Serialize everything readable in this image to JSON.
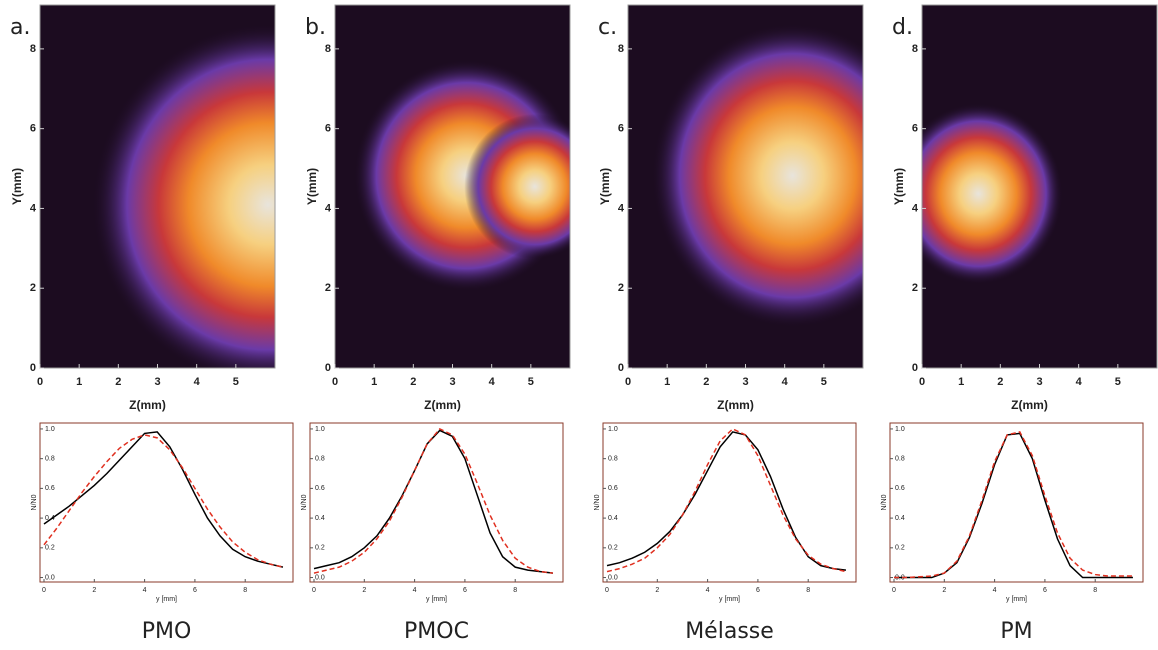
{
  "chart_data": [
    {
      "type": "image",
      "label": "a.",
      "xlabel": "Z(mm)",
      "ylabel": "Y(mm)",
      "xlim": [
        0,
        6
      ],
      "ylim": [
        0,
        9.1
      ],
      "xticks": [
        0,
        1,
        2,
        3,
        4,
        5
      ],
      "yticks": [
        0,
        2,
        4,
        6,
        8
      ]
    },
    {
      "type": "image",
      "label": "b.",
      "xlabel": "Z(mm)",
      "ylabel": "Y(mm)",
      "xlim": [
        0,
        6
      ],
      "ylim": [
        0,
        9.1
      ],
      "xticks": [
        0,
        1,
        2,
        3,
        4,
        5
      ],
      "yticks": [
        0,
        2,
        4,
        6,
        8
      ]
    },
    {
      "type": "image",
      "label": "c.",
      "xlabel": "Z(mm)",
      "ylabel": "Y(mm)",
      "xlim": [
        0,
        6
      ],
      "ylim": [
        0,
        9.1
      ],
      "xticks": [
        0,
        1,
        2,
        3,
        4,
        5
      ],
      "yticks": [
        0,
        2,
        4,
        6,
        8
      ]
    },
    {
      "type": "image",
      "label": "d.",
      "xlabel": "Z(mm)",
      "ylabel": "Y(mm)",
      "xlim": [
        0,
        6
      ],
      "ylim": [
        0,
        9.1
      ],
      "xticks": [
        0,
        1,
        2,
        3,
        4,
        5
      ],
      "yticks": [
        0,
        2,
        4,
        6,
        8
      ]
    },
    {
      "type": "line",
      "caption": "PMO",
      "xlabel": "y [mm]",
      "ylabel": "N/N0",
      "xlim": [
        0,
        9.9
      ],
      "ylim": [
        -0.03,
        1.04
      ],
      "xticks": [
        0,
        2,
        4,
        6,
        8
      ],
      "yticks": [
        {
          "value": 0,
          "label": "0.0"
        },
        0.2,
        0.4,
        0.6,
        0.8,
        {
          "value": 1,
          "label": "1.0"
        }
      ],
      "x": [
        0,
        0.5,
        1,
        1.5,
        2,
        2.5,
        3,
        3.5,
        4,
        4.5,
        5,
        5.5,
        6,
        6.5,
        7,
        7.5,
        8,
        8.5,
        9,
        9.5
      ],
      "series": [
        {
          "color": "#000000",
          "style": "solid",
          "values": [
            0.36,
            0.42,
            0.48,
            0.55,
            0.62,
            0.7,
            0.79,
            0.88,
            0.97,
            0.98,
            0.88,
            0.73,
            0.56,
            0.4,
            0.28,
            0.19,
            0.14,
            0.11,
            0.09,
            0.07
          ]
        },
        {
          "color": "#e03020",
          "style": "dashed",
          "values": [
            0.22,
            0.33,
            0.45,
            0.57,
            0.68,
            0.78,
            0.87,
            0.93,
            0.96,
            0.94,
            0.86,
            0.74,
            0.6,
            0.46,
            0.34,
            0.24,
            0.17,
            0.12,
            0.09,
            0.07
          ]
        }
      ]
    },
    {
      "type": "line",
      "caption": "PMOC",
      "xlabel": "y [mm]",
      "ylabel": "N/N0",
      "xlim": [
        0,
        9.9
      ],
      "ylim": [
        -0.03,
        1.04
      ],
      "xticks": [
        0,
        2,
        4,
        6,
        8
      ],
      "yticks": [
        {
          "value": 0,
          "label": "0.0"
        },
        0.2,
        0.4,
        0.6,
        0.8,
        {
          "value": 1,
          "label": "1.0"
        }
      ],
      "x": [
        0,
        0.5,
        1,
        1.5,
        2,
        2.5,
        3,
        3.5,
        4,
        4.5,
        5,
        5.5,
        6,
        6.5,
        7,
        7.5,
        8,
        8.5,
        9,
        9.5
      ],
      "series": [
        {
          "color": "#000000",
          "style": "solid",
          "values": [
            0.06,
            0.08,
            0.1,
            0.14,
            0.2,
            0.28,
            0.4,
            0.55,
            0.72,
            0.9,
            0.99,
            0.95,
            0.8,
            0.55,
            0.3,
            0.14,
            0.07,
            0.05,
            0.04,
            0.03
          ]
        },
        {
          "color": "#e03020",
          "style": "dashed",
          "values": [
            0.03,
            0.05,
            0.07,
            0.11,
            0.17,
            0.26,
            0.38,
            0.54,
            0.72,
            0.9,
            1.0,
            0.96,
            0.83,
            0.63,
            0.42,
            0.25,
            0.13,
            0.07,
            0.04,
            0.03
          ]
        }
      ]
    },
    {
      "type": "line",
      "caption": "Mélasse",
      "xlabel": "y [mm]",
      "ylabel": "N/N0",
      "xlim": [
        0,
        9.9
      ],
      "ylim": [
        -0.03,
        1.04
      ],
      "xticks": [
        0,
        2,
        4,
        6,
        8
      ],
      "yticks": [
        {
          "value": 0,
          "label": "0.0"
        },
        0.2,
        0.4,
        0.6,
        0.8,
        {
          "value": 1,
          "label": "1.0"
        }
      ],
      "x": [
        0,
        0.5,
        1,
        1.5,
        2,
        2.5,
        3,
        3.5,
        4,
        4.5,
        5,
        5.5,
        6,
        6.5,
        7,
        7.5,
        8,
        8.5,
        9,
        9.5
      ],
      "series": [
        {
          "color": "#000000",
          "style": "solid",
          "values": [
            0.08,
            0.1,
            0.13,
            0.17,
            0.23,
            0.31,
            0.42,
            0.56,
            0.72,
            0.88,
            0.98,
            0.96,
            0.86,
            0.68,
            0.46,
            0.27,
            0.14,
            0.08,
            0.06,
            0.05
          ]
        },
        {
          "color": "#e03020",
          "style": "dashed",
          "values": [
            0.04,
            0.06,
            0.09,
            0.13,
            0.2,
            0.29,
            0.42,
            0.58,
            0.76,
            0.92,
            1.0,
            0.96,
            0.82,
            0.62,
            0.42,
            0.26,
            0.15,
            0.09,
            0.06,
            0.04
          ]
        }
      ]
    },
    {
      "type": "line",
      "caption": "PM",
      "xlabel": "y [mm]",
      "ylabel": "N/N0",
      "xlim": [
        0,
        9.9
      ],
      "ylim": [
        -0.03,
        1.04
      ],
      "xticks": [
        0,
        2,
        4,
        6,
        8
      ],
      "yticks": [
        {
          "value": 0,
          "label": "0.0"
        },
        0.2,
        0.4,
        0.6,
        0.8,
        {
          "value": 1,
          "label": "1.0"
        }
      ],
      "x": [
        0,
        0.5,
        1,
        1.5,
        2,
        2.5,
        3,
        3.5,
        4,
        4.5,
        5,
        5.5,
        6,
        6.5,
        7,
        7.5,
        8,
        8.5,
        9,
        9.5
      ],
      "series": [
        {
          "color": "#000000",
          "style": "solid",
          "values": [
            0,
            0,
            0,
            0,
            0.03,
            0.1,
            0.27,
            0.5,
            0.76,
            0.96,
            0.97,
            0.8,
            0.52,
            0.26,
            0.08,
            0,
            0,
            0,
            0,
            0
          ]
        },
        {
          "color": "#e03020",
          "style": "dashed",
          "values": [
            0,
            0,
            0.005,
            0.01,
            0.03,
            0.11,
            0.28,
            0.52,
            0.78,
            0.96,
            0.98,
            0.82,
            0.55,
            0.3,
            0.13,
            0.05,
            0.02,
            0.01,
            0.01,
            0.01
          ]
        }
      ]
    }
  ]
}
